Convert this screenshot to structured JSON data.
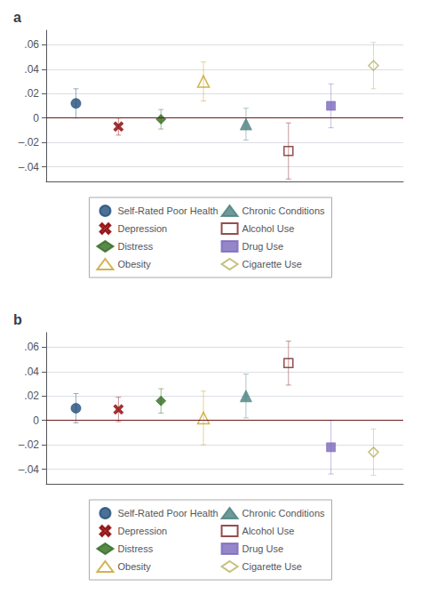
{
  "chart_data": [
    {
      "type": "scatter",
      "title": "a",
      "xlim": [
        0.3,
        8.7
      ],
      "ylim": [
        -0.052,
        0.072
      ],
      "yticks": [
        {
          "value": -0.04,
          "label": "–.04"
        },
        {
          "value": -0.02,
          "label": "–.02"
        },
        0,
        {
          "value": 0.02,
          "label": ".02"
        },
        {
          "value": 0.04,
          "label": ".04"
        },
        {
          "value": 0.06,
          "label": ".06"
        }
      ],
      "grid": true,
      "legend": "bottom",
      "tick_labels": "y",
      "hlines": [
        {
          "value": 0,
          "color": "#6b1a1a"
        }
      ],
      "series": [
        {
          "name": "Self-Rated Poor Health",
          "color": "#1f4e79",
          "marker": "circle",
          "x": [
            1
          ],
          "values": [
            0.012
          ],
          "yerr_lo": [
            0.012
          ],
          "yerr_hi": [
            0.012
          ]
        },
        {
          "name": "Depression",
          "color": "#8b0000",
          "marker": "x",
          "x": [
            2
          ],
          "values": [
            -0.007
          ],
          "yerr_lo": [
            0.007
          ],
          "yerr_hi": [
            0.007
          ]
        },
        {
          "name": "Distress",
          "color": "#2e6b1e",
          "marker": "diamond",
          "x": [
            3
          ],
          "values": [
            -0.001
          ],
          "yerr_lo": [
            0.008
          ],
          "yerr_hi": [
            0.008
          ]
        },
        {
          "name": "Obesity",
          "color": "#c8a020",
          "marker": "triangle-open",
          "x": [
            4
          ],
          "values": [
            0.03
          ],
          "yerr_lo": [
            0.016
          ],
          "yerr_hi": [
            0.016
          ]
        },
        {
          "name": "Chronic Conditions",
          "color": "#4a8080",
          "marker": "triangle",
          "x": [
            5
          ],
          "values": [
            -0.005
          ],
          "yerr_lo": [
            0.013
          ],
          "yerr_hi": [
            0.013
          ]
        },
        {
          "name": "Alcohol Use",
          "color": "#7b2020",
          "marker": "square-open",
          "x": [
            6
          ],
          "values": [
            -0.027
          ],
          "yerr_lo": [
            0.023
          ],
          "yerr_hi": [
            0.023
          ]
        },
        {
          "name": "Drug Use",
          "color": "#7b68bb",
          "marker": "square",
          "x": [
            7
          ],
          "values": [
            0.01
          ],
          "yerr_lo": [
            0.018
          ],
          "yerr_hi": [
            0.018
          ]
        },
        {
          "name": "Cigarette Use",
          "color": "#b8b060",
          "marker": "diamond-open",
          "x": [
            8
          ],
          "values": [
            0.043
          ],
          "yerr_lo": [
            0.019
          ],
          "yerr_hi": [
            0.019
          ]
        }
      ]
    },
    {
      "type": "scatter",
      "title": "b",
      "xlim": [
        0.3,
        8.7
      ],
      "ylim": [
        -0.052,
        0.072
      ],
      "yticks": [
        {
          "value": -0.04,
          "label": "–.04"
        },
        {
          "value": -0.02,
          "label": "–.02"
        },
        0,
        {
          "value": 0.02,
          "label": ".02"
        },
        {
          "value": 0.04,
          "label": ".04"
        },
        {
          "value": 0.06,
          "label": ".06"
        }
      ],
      "grid": true,
      "legend": "bottom",
      "tick_labels": "y",
      "hlines": [
        {
          "value": 0,
          "color": "#6b1a1a"
        }
      ],
      "series": [
        {
          "name": "Self-Rated Poor Health",
          "color": "#1f4e79",
          "marker": "circle",
          "x": [
            1
          ],
          "values": [
            0.01
          ],
          "yerr_lo": [
            0.012
          ],
          "yerr_hi": [
            0.012
          ]
        },
        {
          "name": "Depression",
          "color": "#8b0000",
          "marker": "x",
          "x": [
            2
          ],
          "values": [
            0.009
          ],
          "yerr_lo": [
            0.01
          ],
          "yerr_hi": [
            0.01
          ]
        },
        {
          "name": "Distress",
          "color": "#2e6b1e",
          "marker": "diamond",
          "x": [
            3
          ],
          "values": [
            0.016
          ],
          "yerr_lo": [
            0.01
          ],
          "yerr_hi": [
            0.01
          ]
        },
        {
          "name": "Obesity",
          "color": "#c8a020",
          "marker": "triangle-open",
          "x": [
            4
          ],
          "values": [
            0.002
          ],
          "yerr_lo": [
            0.022
          ],
          "yerr_hi": [
            0.022
          ]
        },
        {
          "name": "Chronic Conditions",
          "color": "#4a8080",
          "marker": "triangle",
          "x": [
            5
          ],
          "values": [
            0.02
          ],
          "yerr_lo": [
            0.018
          ],
          "yerr_hi": [
            0.018
          ]
        },
        {
          "name": "Alcohol Use",
          "color": "#7b2020",
          "marker": "square-open",
          "x": [
            6
          ],
          "values": [
            0.047
          ],
          "yerr_lo": [
            0.018
          ],
          "yerr_hi": [
            0.018
          ]
        },
        {
          "name": "Drug Use",
          "color": "#7b68bb",
          "marker": "square",
          "x": [
            7
          ],
          "values": [
            -0.022
          ],
          "yerr_lo": [
            0.022
          ],
          "yerr_hi": [
            0.022
          ]
        },
        {
          "name": "Cigarette Use",
          "color": "#b8b060",
          "marker": "diamond-open",
          "x": [
            8
          ],
          "values": [
            -0.026
          ],
          "yerr_lo": [
            0.019
          ],
          "yerr_hi": [
            0.019
          ]
        }
      ]
    }
  ]
}
